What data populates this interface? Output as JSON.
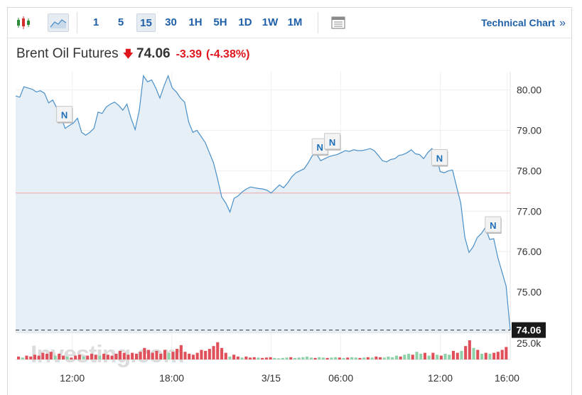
{
  "toolbar": {
    "intervals": [
      "1",
      "5",
      "15",
      "30",
      "1H",
      "5H",
      "1D",
      "1W",
      "1M"
    ],
    "active_interval": "15",
    "technical_chart_label": "Technical Chart",
    "technical_chart_chevron": "»"
  },
  "instrument": {
    "name": "Brent Oil Futures",
    "direction_arrow": "🡇",
    "price": "74.06",
    "change": "-3.39",
    "change_pct": "(-4.38%)",
    "down_color": "#e0151d"
  },
  "watermark": "Investing.com",
  "news_marker_label": "N",
  "chart_data": {
    "type": "area",
    "instrument": "Brent Oil Futures",
    "x_tick_labels": [
      "12:00",
      "18:00",
      "3/15",
      "06:00",
      "12:00",
      "16:00"
    ],
    "y_tick_labels": [
      "80.00",
      "79.00",
      "78.00",
      "77.00",
      "76.00",
      "75.00"
    ],
    "ylim": [
      74.0,
      80.45
    ],
    "volume_label": "25.0k",
    "reference_line": 77.45,
    "last_price": 74.06,
    "last_price_label": "74.06",
    "series": [
      {
        "values": [
          79.85,
          79.82,
          80.08,
          80.05,
          80.02,
          79.95,
          79.98,
          79.92,
          79.68,
          79.75,
          79.55,
          79.35,
          79.05,
          79.12,
          79.18,
          79.3,
          78.95,
          78.88,
          78.95,
          79.05,
          79.45,
          79.42,
          79.58,
          79.65,
          79.7,
          79.62,
          79.5,
          79.65,
          79.3,
          79.02,
          79.5,
          80.35,
          80.2,
          80.25,
          80.05,
          79.8,
          80.1,
          80.35,
          80.05,
          79.95,
          79.8,
          79.7,
          79.2,
          78.95,
          79.0,
          78.85,
          78.7,
          78.45,
          78.2,
          77.8,
          77.35,
          77.2,
          76.98,
          77.32,
          77.38,
          77.48,
          77.55,
          77.6,
          77.58,
          77.56,
          77.55,
          77.52,
          77.45,
          77.55,
          77.65,
          77.58,
          77.7,
          77.85,
          77.95,
          78.0,
          78.05,
          78.2,
          78.38,
          78.42,
          78.25,
          78.3,
          78.35,
          78.38,
          78.4,
          78.45,
          78.5,
          78.48,
          78.52,
          78.5,
          78.5,
          78.52,
          78.55,
          78.5,
          78.38,
          78.25,
          78.22,
          78.28,
          78.3,
          78.38,
          78.4,
          78.45,
          78.52,
          78.42,
          78.4,
          78.3,
          78.45,
          78.55,
          78.4,
          77.98,
          77.95,
          78.0,
          78.02,
          77.6,
          77.2,
          76.35,
          75.98,
          76.12,
          76.35,
          76.45,
          76.6,
          76.3,
          76.32,
          75.85,
          75.5,
          75.15,
          74.06
        ],
        "markers": [
          {
            "index": 12,
            "label": "N"
          },
          {
            "index": 74,
            "label": "N"
          },
          {
            "index": 77,
            "label": "N"
          },
          {
            "index": 103,
            "label": "N"
          },
          {
            "index": 116,
            "label": "N"
          }
        ]
      }
    ],
    "volume": [
      {
        "v": 0.15,
        "up": false
      },
      {
        "v": 0.1,
        "up": true
      },
      {
        "v": 0.2,
        "up": false
      },
      {
        "v": 0.15,
        "up": false
      },
      {
        "v": 0.25,
        "up": false
      },
      {
        "v": 0.2,
        "up": false
      },
      {
        "v": 0.35,
        "up": false
      },
      {
        "v": 0.3,
        "up": false
      },
      {
        "v": 0.4,
        "up": false
      },
      {
        "v": 0.2,
        "up": true
      },
      {
        "v": 0.3,
        "up": false
      },
      {
        "v": 0.2,
        "up": false
      },
      {
        "v": 0.15,
        "up": true
      },
      {
        "v": 0.1,
        "up": false
      },
      {
        "v": 0.2,
        "up": false
      },
      {
        "v": 0.25,
        "up": false
      },
      {
        "v": 0.15,
        "up": true
      },
      {
        "v": 0.2,
        "up": false
      },
      {
        "v": 0.3,
        "up": false
      },
      {
        "v": 0.25,
        "up": false
      },
      {
        "v": 0.2,
        "up": true
      },
      {
        "v": 0.3,
        "up": false
      },
      {
        "v": 0.25,
        "up": false
      },
      {
        "v": 0.2,
        "up": false
      },
      {
        "v": 0.3,
        "up": false
      },
      {
        "v": 0.45,
        "up": false
      },
      {
        "v": 0.35,
        "up": false
      },
      {
        "v": 0.25,
        "up": false
      },
      {
        "v": 0.35,
        "up": false
      },
      {
        "v": 0.3,
        "up": false
      },
      {
        "v": 0.4,
        "up": false
      },
      {
        "v": 0.6,
        "up": false
      },
      {
        "v": 0.5,
        "up": false
      },
      {
        "v": 0.35,
        "up": false
      },
      {
        "v": 0.45,
        "up": false
      },
      {
        "v": 0.3,
        "up": false
      },
      {
        "v": 0.5,
        "up": false
      },
      {
        "v": 0.35,
        "up": true
      },
      {
        "v": 0.4,
        "up": false
      },
      {
        "v": 0.55,
        "up": false
      },
      {
        "v": 0.75,
        "up": false
      },
      {
        "v": 0.4,
        "up": false
      },
      {
        "v": 0.3,
        "up": false
      },
      {
        "v": 0.25,
        "up": false
      },
      {
        "v": 0.35,
        "up": false
      },
      {
        "v": 0.5,
        "up": false
      },
      {
        "v": 0.45,
        "up": false
      },
      {
        "v": 0.55,
        "up": false
      },
      {
        "v": 0.7,
        "up": false
      },
      {
        "v": 0.9,
        "up": false
      },
      {
        "v": 0.6,
        "up": false
      },
      {
        "v": 0.35,
        "up": false
      },
      {
        "v": 0.15,
        "up": true
      },
      {
        "v": 0.25,
        "up": false
      },
      {
        "v": 0.15,
        "up": false
      },
      {
        "v": 0.1,
        "up": true
      },
      {
        "v": 0.15,
        "up": false
      },
      {
        "v": 0.1,
        "up": false
      },
      {
        "v": 0.12,
        "up": false
      },
      {
        "v": 0.1,
        "up": true
      },
      {
        "v": 0.08,
        "up": false
      },
      {
        "v": 0.1,
        "up": false
      },
      {
        "v": 0.12,
        "up": false
      },
      {
        "v": 0.08,
        "up": true
      },
      {
        "v": 0.06,
        "up": true
      },
      {
        "v": 0.08,
        "up": true
      },
      {
        "v": 0.1,
        "up": true
      },
      {
        "v": 0.12,
        "up": false
      },
      {
        "v": 0.08,
        "up": true
      },
      {
        "v": 0.1,
        "up": true
      },
      {
        "v": 0.12,
        "up": true
      },
      {
        "v": 0.15,
        "up": true
      },
      {
        "v": 0.1,
        "up": true
      },
      {
        "v": 0.08,
        "up": false
      },
      {
        "v": 0.12,
        "up": true
      },
      {
        "v": 0.1,
        "up": true
      },
      {
        "v": 0.08,
        "up": false
      },
      {
        "v": 0.1,
        "up": true
      },
      {
        "v": 0.12,
        "up": true
      },
      {
        "v": 0.1,
        "up": false
      },
      {
        "v": 0.08,
        "up": true
      },
      {
        "v": 0.1,
        "up": false
      },
      {
        "v": 0.12,
        "up": true
      },
      {
        "v": 0.1,
        "up": true
      },
      {
        "v": 0.08,
        "up": false
      },
      {
        "v": 0.1,
        "up": true
      },
      {
        "v": 0.12,
        "up": false
      },
      {
        "v": 0.1,
        "up": true
      },
      {
        "v": 0.15,
        "up": false
      },
      {
        "v": 0.12,
        "up": false
      },
      {
        "v": 0.1,
        "up": true
      },
      {
        "v": 0.15,
        "up": true
      },
      {
        "v": 0.12,
        "up": true
      },
      {
        "v": 0.2,
        "up": true
      },
      {
        "v": 0.15,
        "up": false
      },
      {
        "v": 0.25,
        "up": true
      },
      {
        "v": 0.3,
        "up": true
      },
      {
        "v": 0.25,
        "up": false
      },
      {
        "v": 0.4,
        "up": true
      },
      {
        "v": 0.3,
        "up": true
      },
      {
        "v": 0.35,
        "up": false
      },
      {
        "v": 0.2,
        "up": true
      },
      {
        "v": 0.35,
        "up": false
      },
      {
        "v": 0.25,
        "up": true
      },
      {
        "v": 0.2,
        "up": false
      },
      {
        "v": 0.3,
        "up": true
      },
      {
        "v": 0.25,
        "up": true
      },
      {
        "v": 0.45,
        "up": false
      },
      {
        "v": 0.35,
        "up": false
      },
      {
        "v": 0.45,
        "up": true
      },
      {
        "v": 0.7,
        "up": false
      },
      {
        "v": 1.0,
        "up": false
      },
      {
        "v": 0.6,
        "up": true
      },
      {
        "v": 0.5,
        "up": false
      },
      {
        "v": 0.3,
        "up": true
      },
      {
        "v": 0.35,
        "up": false
      },
      {
        "v": 0.3,
        "up": true
      },
      {
        "v": 0.35,
        "up": false
      },
      {
        "v": 0.4,
        "up": false
      },
      {
        "v": 0.5,
        "up": false
      },
      {
        "v": 0.65,
        "up": false
      }
    ],
    "colors": {
      "line": "#4a90c8",
      "fill": "#e6eef6",
      "reference_line": "#f1a7a7",
      "volume_down": "#e0505a",
      "volume_up": "#8fd1a8",
      "last_price_bg": "#1a1a1a"
    }
  }
}
